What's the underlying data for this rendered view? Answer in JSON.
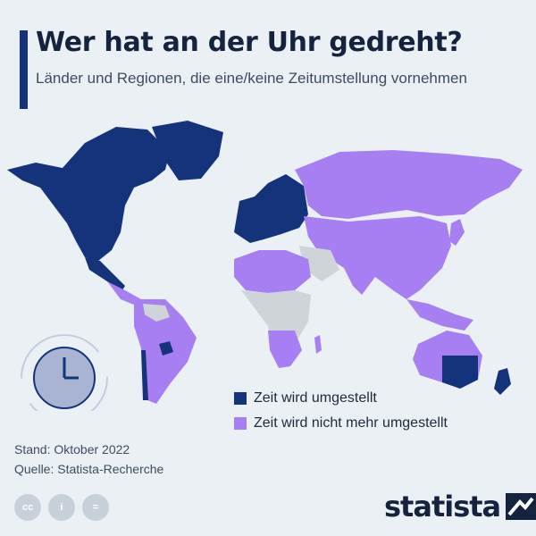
{
  "header": {
    "title": "Wer hat an der Uhr gedreht?",
    "subtitle": "Länder und Regionen, die eine/keine Zeitumstellung vornehmen"
  },
  "colors": {
    "dst": "#15337a",
    "no_dst": "#a77ff2",
    "no_data": "#cfd4d9",
    "accent": "#15337a"
  },
  "legend": {
    "items": [
      {
        "label": "Zeit wird umgestellt",
        "color": "#15337a"
      },
      {
        "label": "Zeit wird nicht mehr umgestellt",
        "color": "#a77ff2"
      }
    ]
  },
  "footer": {
    "stand": "Stand: Oktober 2022",
    "quelle": "Quelle: Statista-Recherche",
    "license_icons": [
      "cc-icon",
      "person-icon",
      "equals-icon"
    ],
    "license_labels": {
      "cc": "cc",
      "by": "i",
      "nd": "="
    }
  },
  "brand": {
    "name": "statista"
  },
  "map": {
    "icons": [
      "clock-icon"
    ]
  }
}
